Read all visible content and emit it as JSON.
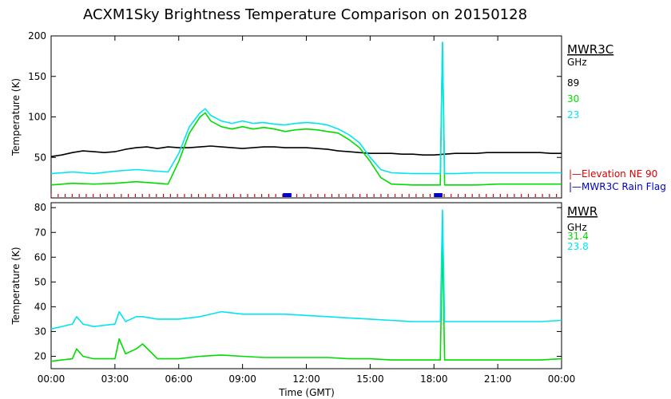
{
  "title": "ACXM1Sky Brightness Temperature Comparison on 20150128",
  "colors": {
    "ch89": "#000000",
    "ch30": "#00dd00",
    "ch23": "#00e5ee",
    "elevation_flag": "#dd0000",
    "rain_flag": "#0000cc"
  },
  "chart_data": [
    {
      "type": "line",
      "instrument": "MWR3C",
      "unit": "GHz",
      "ylabel": "Temperature (K)",
      "xlabel": "",
      "xlim": [
        0,
        24
      ],
      "ylim": [
        0,
        200
      ],
      "yticks": [
        50,
        100,
        150,
        200
      ],
      "series": [
        {
          "name": "89",
          "color_key": "ch89",
          "x": [
            0,
            0.5,
            1,
            1.5,
            2,
            2.5,
            3,
            3.5,
            4,
            4.5,
            5,
            5.5,
            6,
            6.5,
            7,
            7.5,
            8,
            8.5,
            9,
            9.5,
            10,
            10.5,
            11,
            11.5,
            12,
            12.5,
            13,
            13.5,
            14,
            14.5,
            15,
            15.5,
            16,
            16.5,
            17,
            17.5,
            18,
            18.5,
            19,
            19.5,
            20,
            20.5,
            21,
            21.5,
            22,
            22.5,
            23,
            23.5,
            24
          ],
          "y": [
            51,
            53,
            56,
            58,
            57,
            56,
            57,
            60,
            62,
            63,
            61,
            63,
            62,
            62,
            63,
            64,
            63,
            62,
            61,
            62,
            63,
            63,
            62,
            62,
            62,
            61,
            60,
            58,
            57,
            56,
            55,
            55,
            55,
            54,
            54,
            53,
            53,
            54,
            55,
            55,
            55,
            56,
            56,
            56,
            56,
            56,
            56,
            55,
            55
          ]
        },
        {
          "name": "30",
          "color_key": "ch30",
          "x": [
            0,
            1,
            2,
            3,
            4,
            5,
            5.5,
            6,
            6.5,
            7,
            7.25,
            7.5,
            8,
            8.5,
            9,
            9.5,
            10,
            10.5,
            11,
            11.5,
            12,
            12.5,
            13,
            13.5,
            14,
            14.5,
            15,
            15.5,
            16,
            17,
            18,
            18.3,
            18.4,
            18.5,
            19,
            20,
            21,
            22,
            23,
            24
          ],
          "y": [
            16,
            18,
            17,
            18,
            20,
            18,
            17,
            45,
            80,
            100,
            105,
            95,
            88,
            85,
            88,
            85,
            87,
            85,
            82,
            84,
            85,
            84,
            82,
            80,
            72,
            62,
            45,
            25,
            17,
            16,
            16,
            16,
            192,
            16,
            16,
            16,
            17,
            17,
            17,
            17
          ]
        },
        {
          "name": "23",
          "color_key": "ch23",
          "x": [
            0,
            1,
            2,
            3,
            4,
            5,
            5.5,
            6,
            6.5,
            7,
            7.25,
            7.5,
            8,
            8.5,
            9,
            9.5,
            10,
            10.5,
            11,
            11.5,
            12,
            12.5,
            13,
            13.5,
            14,
            14.5,
            15,
            15.5,
            16,
            17,
            18,
            18.3,
            18.4,
            18.5,
            19,
            20,
            21,
            22,
            23,
            24
          ],
          "y": [
            30,
            32,
            30,
            33,
            35,
            33,
            32,
            55,
            88,
            105,
            110,
            102,
            95,
            92,
            95,
            92,
            93,
            91,
            90,
            92,
            93,
            92,
            90,
            85,
            78,
            68,
            50,
            35,
            31,
            30,
            30,
            30,
            192,
            30,
            30,
            31,
            31,
            31,
            31,
            31
          ]
        }
      ],
      "flags": [
        {
          "label": "Elevation NE 90",
          "color_key": "elevation_flag"
        },
        {
          "label": "MWR3C Rain Flag",
          "color_key": "rain_flag",
          "intervals": [
            [
              10.9,
              11.3
            ],
            [
              18.0,
              18.4
            ]
          ]
        }
      ]
    },
    {
      "type": "line",
      "instrument": "MWR",
      "unit": "GHz",
      "ylabel": "Temperature (K)",
      "xlabel": "Time (GMT)",
      "xlim": [
        0,
        24
      ],
      "ylim": [
        15,
        82
      ],
      "yticks": [
        20,
        30,
        40,
        50,
        60,
        70,
        80
      ],
      "xticks": [
        "00:00",
        "03:00",
        "06:00",
        "09:00",
        "12:00",
        "15:00",
        "18:00",
        "21:00",
        "00:00"
      ],
      "series": [
        {
          "name": "31.4",
          "color_key": "ch30",
          "x": [
            0,
            1,
            1.2,
            1.5,
            2,
            3,
            3.2,
            3.5,
            4,
            4.3,
            5,
            6,
            7,
            8,
            9,
            10,
            11,
            12,
            13,
            14,
            15,
            16,
            17,
            18,
            18.3,
            18.4,
            18.5,
            19,
            20,
            21,
            22,
            23,
            24
          ],
          "y": [
            18,
            19,
            23,
            20,
            19,
            19,
            27,
            21,
            23,
            25,
            19,
            19,
            20,
            20.5,
            20,
            19.5,
            19.5,
            19.5,
            19.5,
            19,
            19,
            18.5,
            18.5,
            18.5,
            18.5,
            67,
            18.5,
            18.5,
            18.5,
            18.5,
            18.5,
            18.5,
            19
          ]
        },
        {
          "name": "23.8",
          "color_key": "ch23",
          "x": [
            0,
            1,
            1.2,
            1.5,
            2,
            3,
            3.2,
            3.5,
            4,
            4.3,
            5,
            6,
            7,
            8,
            9,
            10,
            11,
            12,
            13,
            14,
            15,
            16,
            17,
            18,
            18.3,
            18.4,
            18.5,
            19,
            20,
            21,
            22,
            23,
            24
          ],
          "y": [
            31,
            33,
            36,
            33,
            32,
            33,
            38,
            34,
            36,
            36,
            35,
            35,
            36,
            38,
            37,
            37,
            37,
            36.5,
            36,
            35.5,
            35,
            34.5,
            34,
            34,
            34,
            79,
            34,
            34,
            34,
            34,
            34,
            34,
            34.5
          ]
        }
      ]
    }
  ]
}
